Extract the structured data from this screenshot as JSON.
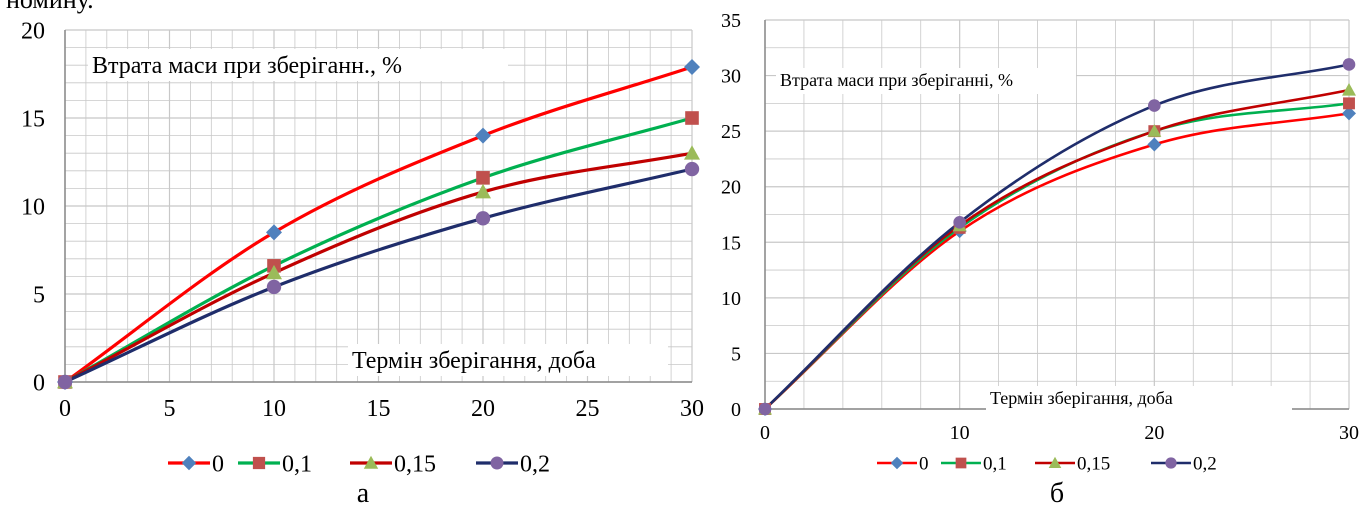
{
  "top_fragment": "номину.",
  "colors": {
    "grid": "#c8c8c8",
    "axis": "#888888"
  },
  "chart_data": [
    {
      "type": "line",
      "caption": "а",
      "annotation_y": "Втрата маси при зберіганн., %",
      "annotation_x": "Термін зберігання, доба",
      "xlim": [
        0,
        30
      ],
      "ylim": [
        0,
        20
      ],
      "x_ticks": [
        "0",
        "5",
        "10",
        "15",
        "20",
        "25",
        "30"
      ],
      "y_ticks": [
        "0",
        "5",
        "10",
        "15",
        "20"
      ],
      "x": [
        0,
        10,
        20,
        30
      ],
      "series": [
        {
          "name": "0",
          "color": "#ff0000",
          "marker": "diamond",
          "marker_color": "#4f81bd",
          "values": [
            0,
            8.5,
            14,
            17.9
          ]
        },
        {
          "name": "0,1",
          "color": "#00b050",
          "marker": "square",
          "marker_color": "#c0504d",
          "values": [
            0,
            6.6,
            11.6,
            15
          ]
        },
        {
          "name": "0,15",
          "color": "#c00000",
          "marker": "triangle",
          "marker_color": "#9bbb59",
          "values": [
            0,
            6.2,
            10.8,
            13
          ]
        },
        {
          "name": "0,2",
          "color": "#1f2d6b",
          "marker": "circle",
          "marker_color": "#8064a2",
          "values": [
            0,
            5.4,
            9.3,
            12.1
          ]
        }
      ]
    },
    {
      "type": "line",
      "caption": "б",
      "annotation_y": "Втрата маси при зберіганні, %",
      "annotation_x": "Термін зберігання, доба",
      "xlim": [
        0,
        30
      ],
      "ylim": [
        0,
        35
      ],
      "x_ticks": [
        "0",
        "10",
        "20",
        "30"
      ],
      "y_ticks": [
        "0",
        "5",
        "10",
        "15",
        "20",
        "25",
        "30",
        "35"
      ],
      "x": [
        0,
        10,
        20,
        30
      ],
      "series": [
        {
          "name": "0",
          "color": "#ff0000",
          "marker": "diamond",
          "marker_color": "#4f81bd",
          "values": [
            0,
            16,
            23.8,
            26.6
          ]
        },
        {
          "name": "0,1",
          "color": "#00b050",
          "marker": "square",
          "marker_color": "#c0504d",
          "values": [
            0,
            16.3,
            25,
            27.5
          ]
        },
        {
          "name": "0,15",
          "color": "#c00000",
          "marker": "triangle",
          "marker_color": "#9bbb59",
          "values": [
            0,
            16.5,
            25,
            28.7
          ]
        },
        {
          "name": "0,2",
          "color": "#1f2d6b",
          "marker": "circle",
          "marker_color": "#8064a2",
          "values": [
            0,
            16.8,
            27.3,
            31
          ]
        }
      ]
    }
  ]
}
